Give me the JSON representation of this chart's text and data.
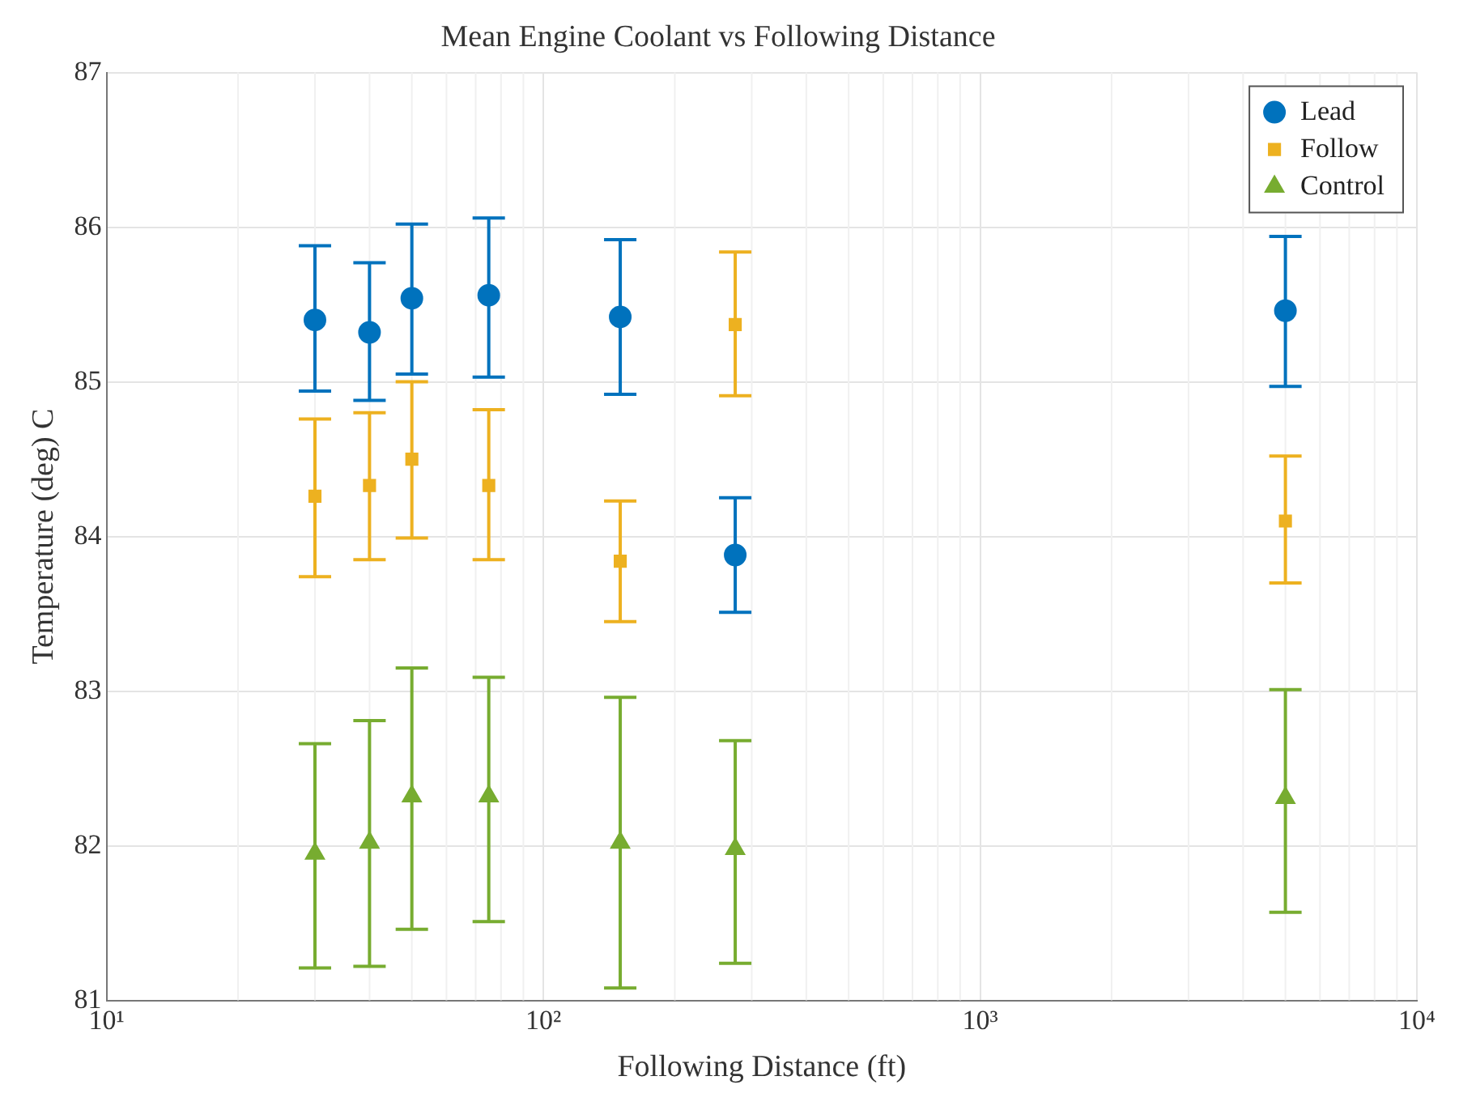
{
  "chart_data": {
    "type": "scatter",
    "title": "Mean Engine Coolant vs Following Distance",
    "xlabel": "Following Distance (ft)",
    "ylabel": "Temperature (deg) C",
    "log": "x",
    "grid": true,
    "legend": "top right",
    "xlim": [
      10,
      10000
    ],
    "xticks": [
      {
        "value": 10,
        "label": "10¹"
      },
      {
        "value": 100,
        "label": "10²"
      },
      {
        "value": 1000,
        "label": "10³"
      },
      {
        "value": 10000,
        "label": "10⁴"
      }
    ],
    "ylim": [
      81,
      87
    ],
    "yticks": [
      81,
      82,
      83,
      84,
      85,
      86,
      87
    ],
    "series": [
      {
        "name": "Lead",
        "color": "#0072bd",
        "marker": "circle",
        "x": [
          30,
          40,
          50,
          75,
          150,
          275,
          5000
        ],
        "values": [
          85.4,
          85.32,
          85.54,
          85.56,
          85.42,
          83.88,
          85.46
        ],
        "errors": [
          [
            84.94,
            85.88
          ],
          [
            84.88,
            85.77
          ],
          [
            85.05,
            86.02
          ],
          [
            85.03,
            86.06
          ],
          [
            84.92,
            85.92
          ],
          [
            83.51,
            84.25
          ],
          [
            84.97,
            85.94
          ]
        ]
      },
      {
        "name": "Follow",
        "color": "#edb120",
        "marker": "square",
        "x": [
          30,
          40,
          50,
          75,
          150,
          275,
          5000
        ],
        "values": [
          84.26,
          84.33,
          84.5,
          84.33,
          83.84,
          85.37,
          84.1
        ],
        "errors": [
          [
            83.74,
            84.76
          ],
          [
            83.85,
            84.8
          ],
          [
            83.99,
            85.0
          ],
          [
            83.85,
            84.82
          ],
          [
            83.45,
            84.23
          ],
          [
            84.91,
            85.84
          ],
          [
            83.7,
            84.52
          ]
        ]
      },
      {
        "name": "Control",
        "color": "#77ac30",
        "marker": "triangle",
        "x": [
          30,
          40,
          50,
          75,
          150,
          275,
          5000
        ],
        "values": [
          81.95,
          82.02,
          82.32,
          82.32,
          82.02,
          81.98,
          82.31
        ],
        "errors": [
          [
            81.21,
            82.66
          ],
          [
            81.22,
            82.81
          ],
          [
            81.46,
            83.15
          ],
          [
            81.51,
            83.09
          ],
          [
            81.08,
            82.96
          ],
          [
            81.24,
            82.68
          ],
          [
            81.57,
            83.01
          ]
        ]
      }
    ]
  }
}
